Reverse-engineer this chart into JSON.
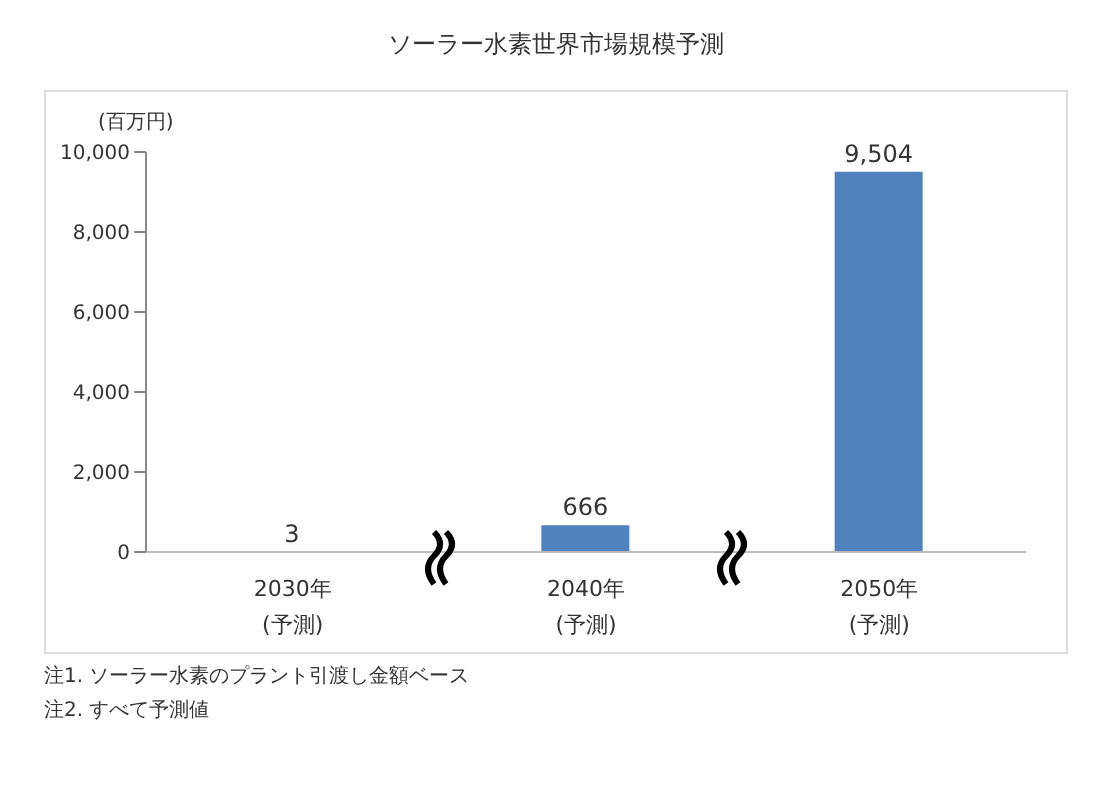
{
  "chart_data": {
    "type": "bar",
    "title": "ソーラー水素世界市場規模予測",
    "ylabel": "(百万円)",
    "categories": [
      "2030年\n(予測)",
      "2040年\n(予測)",
      "2050年\n(予測)"
    ],
    "values": [
      3,
      666,
      9504
    ],
    "value_labels": [
      "3",
      "666",
      "9,504"
    ],
    "color": "#4f81bd",
    "ylim": [
      0,
      10000
    ],
    "yticks": [
      0,
      {
        "value": 2000,
        "label": "2,000"
      },
      {
        "value": 4000,
        "label": "4,000"
      },
      {
        "value": 6000,
        "label": "6,000"
      },
      {
        "value": 8000,
        "label": "8,000"
      },
      {
        "value": 10000,
        "label": "10,000"
      }
    ],
    "grid": false,
    "legend": false,
    "annotations": [
      "注1. ソーラー水素のプラント引渡し金額ベース",
      "注2. すべて予測値"
    ]
  }
}
